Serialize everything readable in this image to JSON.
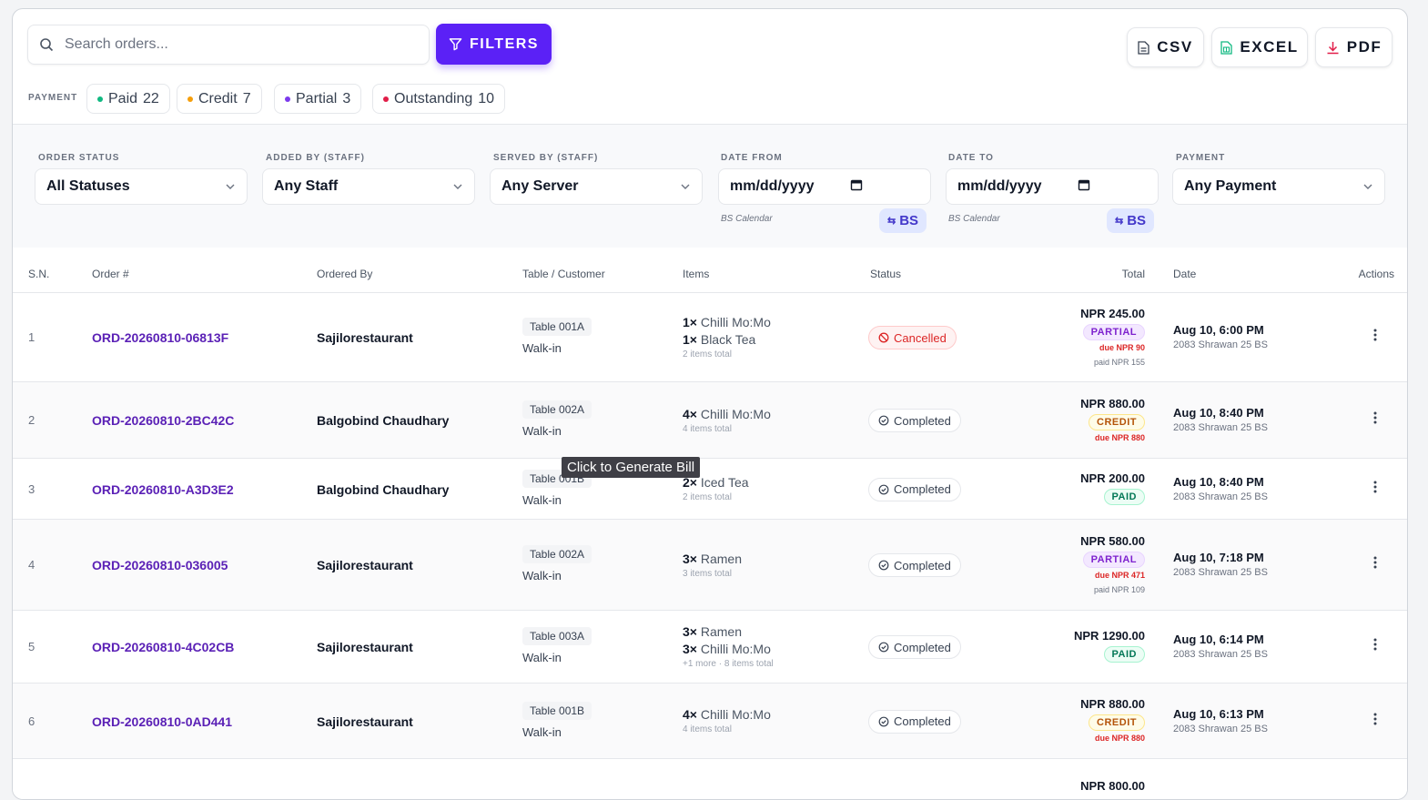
{
  "search": {
    "placeholder": "Search orders..."
  },
  "toolbar": {
    "filters_label": "FILTERS",
    "csv_label": "CSV",
    "excel_label": "EXCEL",
    "pdf_label": "PDF"
  },
  "payment_summary": {
    "label": "PAYMENT",
    "chips": [
      {
        "label": "Paid",
        "count": "22",
        "color": "#10b981"
      },
      {
        "label": "Credit",
        "count": "7",
        "color": "#f59e0b"
      },
      {
        "label": "Partial",
        "count": "3",
        "color": "#7c3aed"
      },
      {
        "label": "Outstanding",
        "count": "10",
        "color": "#e11d48"
      }
    ]
  },
  "filters": {
    "order_status": {
      "label": "ORDER STATUS",
      "value": "All Statuses"
    },
    "added_by": {
      "label": "ADDED BY (STAFF)",
      "value": "Any Staff"
    },
    "served_by": {
      "label": "SERVED BY (STAFF)",
      "value": "Any Server"
    },
    "date_from": {
      "label": "DATE FROM",
      "placeholder": "mm/dd/yyyy",
      "calendar_note": "BS Calendar",
      "bs_toggle": "BS"
    },
    "date_to": {
      "label": "DATE TO",
      "placeholder": "mm/dd/yyyy",
      "calendar_note": "BS Calendar",
      "bs_toggle": "BS"
    },
    "payment": {
      "label": "PAYMENT",
      "value": "Any Payment"
    }
  },
  "table": {
    "headers": {
      "sn": "S.N.",
      "order": "Order #",
      "ordered_by": "Ordered By",
      "table_customer": "Table / Customer",
      "items": "Items",
      "status": "Status",
      "total": "Total",
      "date": "Date",
      "actions": "Actions"
    },
    "rows": [
      {
        "sn": "1",
        "order": "ORD-20260810-06813F",
        "ordered_by": "Sajilorestaurant",
        "table": "Table 001A",
        "customer": "Walk-in",
        "items": [
          {
            "qty": "1×",
            "name": "Chilli Mo:Mo"
          },
          {
            "qty": "1×",
            "name": "Black Tea"
          }
        ],
        "items_total": "2 items total",
        "status": "Cancelled",
        "total": "NPR 245.00",
        "payment": "PARTIAL",
        "due": "due NPR 90",
        "paid": "paid NPR 155",
        "date": "Aug 10, 6:00 PM",
        "date_bs": "2083 Shrawan 25 BS"
      },
      {
        "sn": "2",
        "order": "ORD-20260810-2BC42C",
        "ordered_by": "Balgobind Chaudhary",
        "table": "Table 002A",
        "customer": "Walk-in",
        "items": [
          {
            "qty": "4×",
            "name": "Chilli Mo:Mo"
          }
        ],
        "items_total": "4 items total",
        "status": "Completed",
        "total": "NPR 880.00",
        "payment": "CREDIT",
        "due": "due NPR 880",
        "paid": "",
        "date": "Aug 10, 8:40 PM",
        "date_bs": "2083 Shrawan 25 BS"
      },
      {
        "sn": "3",
        "order": "ORD-20260810-A3D3E2",
        "ordered_by": "Balgobind Chaudhary",
        "table": "Table 001B",
        "customer": "Walk-in",
        "items": [
          {
            "qty": "2×",
            "name": "Iced Tea"
          }
        ],
        "items_total": "2 items total",
        "status": "Completed",
        "total": "NPR 200.00",
        "payment": "PAID",
        "due": "",
        "paid": "",
        "date": "Aug 10, 8:40 PM",
        "date_bs": "2083 Shrawan 25 BS"
      },
      {
        "sn": "4",
        "order": "ORD-20260810-036005",
        "ordered_by": "Sajilorestaurant",
        "table": "Table 002A",
        "customer": "Walk-in",
        "items": [
          {
            "qty": "3×",
            "name": "Ramen"
          }
        ],
        "items_total": "3 items total",
        "status": "Completed",
        "total": "NPR 580.00",
        "payment": "PARTIAL",
        "due": "due NPR 471",
        "paid": "paid NPR 109",
        "date": "Aug 10, 7:18 PM",
        "date_bs": "2083 Shrawan 25 BS"
      },
      {
        "sn": "5",
        "order": "ORD-20260810-4C02CB",
        "ordered_by": "Sajilorestaurant",
        "table": "Table 003A",
        "customer": "Walk-in",
        "items": [
          {
            "qty": "3×",
            "name": "Ramen"
          },
          {
            "qty": "3×",
            "name": "Chilli Mo:Mo"
          }
        ],
        "items_total": "+1 more · 8 items total",
        "status": "Completed",
        "total": "NPR 1290.00",
        "payment": "PAID",
        "due": "",
        "paid": "",
        "date": "Aug 10, 6:14 PM",
        "date_bs": "2083 Shrawan 25 BS"
      },
      {
        "sn": "6",
        "order": "ORD-20260810-0AD441",
        "ordered_by": "Sajilorestaurant",
        "table": "Table 001B",
        "customer": "Walk-in",
        "items": [
          {
            "qty": "4×",
            "name": "Chilli Mo:Mo"
          }
        ],
        "items_total": "4 items total",
        "status": "Completed",
        "total": "NPR 880.00",
        "payment": "CREDIT",
        "due": "due NPR 880",
        "paid": "",
        "date": "Aug 10, 6:13 PM",
        "date_bs": "2083 Shrawan 25 BS"
      },
      {
        "sn": "",
        "order": "",
        "ordered_by": "",
        "table": "",
        "customer": "",
        "items": [],
        "items_total": "",
        "status": "",
        "total": "NPR 800.00",
        "payment": "",
        "due": "",
        "paid": "",
        "date": "",
        "date_bs": ""
      }
    ]
  },
  "tooltip": "Click to Generate Bill",
  "actions_icon": "more-vertical-icon"
}
